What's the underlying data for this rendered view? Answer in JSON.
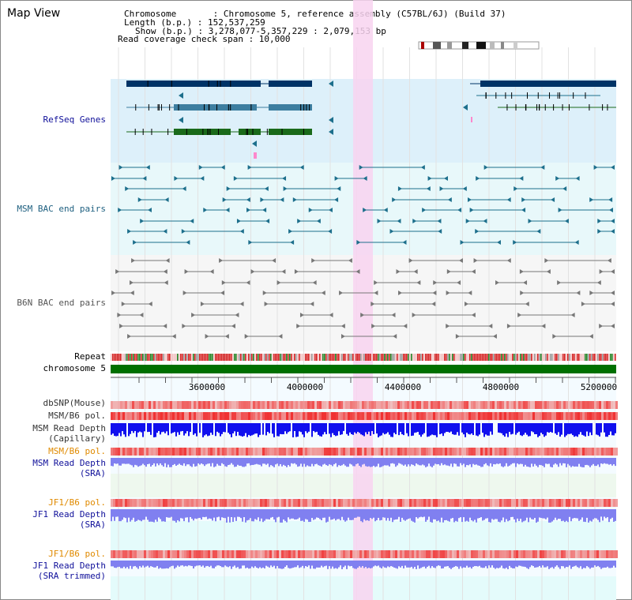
{
  "header": {
    "title": "Map View",
    "chromosome": "Chromosome       : Chromosome 5, reference assembly (C57BL/6J) (Build 37)",
    "length": "Length (b.p.) : 152,537,259",
    "show": "Show (b.p.) : 3,278,077-5,357,229 : 2,079,153 bp",
    "coverage": "Read coverage check span : 10,000"
  },
  "labels": {
    "refseq": "RefSeq Genes",
    "msm_bac": "MSM BAC end pairs",
    "b6n_bac": "B6N BAC end pairs",
    "repeat": "Repeat",
    "chromosome": "chromosome 5",
    "dbsnp": "dbSNP(Mouse)",
    "msm_pol1": "MSM/B6 pol.",
    "msm_depth_cap_1": "MSM Read Depth",
    "msm_depth_cap_2": "(Capillary)",
    "msm_pol2": "MSM/B6 pol.",
    "msm_depth_sra_1": "MSM Read Depth",
    "msm_depth_sra_2": "(SRA)",
    "jf1_pol1": "JF1/B6 pol.",
    "jf1_depth_sra_1": "JF1 Read Depth",
    "jf1_depth_sra_2": "(SRA)",
    "jf1_pol2": "JF1/B6 pol.",
    "jf1_depth_trim_1": "JF1 Read Depth",
    "jf1_depth_trim_2": "(SRA trimmed)"
  },
  "axis": {
    "ticks": [
      "3600000",
      "4000000",
      "4400000",
      "4800000",
      "5200000"
    ]
  },
  "colors": {
    "refseq_bg": "#ddf0fa",
    "bac_bg": "#e8f8fa",
    "b6n_bg": "#f6f6f6",
    "highlight": "#f8d4f0",
    "chromosome": "#007000",
    "navy": "#003366",
    "teal": "#1d6f8c",
    "gray": "#777777",
    "depth_blue": "#1010ee",
    "depth_light": "#8080f0",
    "label_navy": "#10109a",
    "label_orange": "#e08a00",
    "label_teal": "#1f6080"
  }
}
